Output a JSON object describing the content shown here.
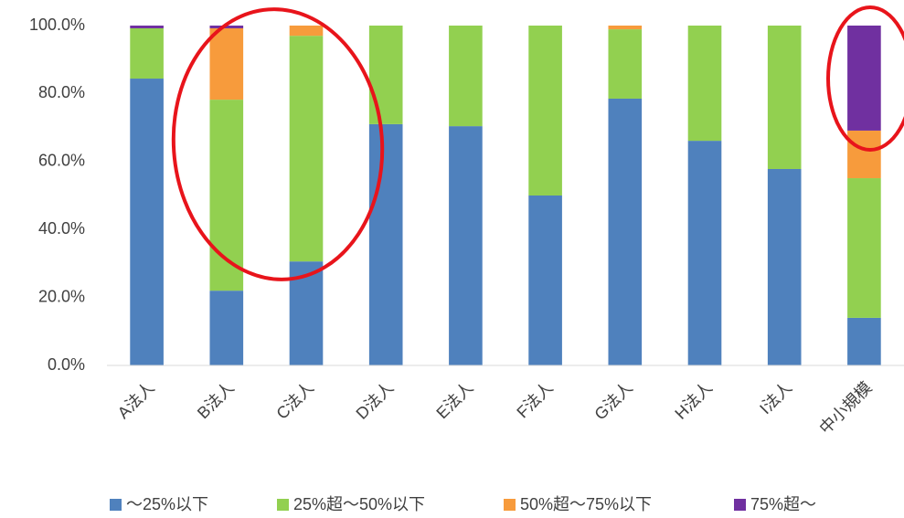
{
  "chart_data": {
    "type": "stacked_bar",
    "categories": [
      "A法人",
      "B法人",
      "C法人",
      "D法人",
      "E法人",
      "F法人",
      "G法人",
      "H法人",
      "I法人",
      "中小規模"
    ],
    "series": [
      {
        "name": "〜25%以下",
        "color": "#4f81bd",
        "values": [
          84.4,
          22.0,
          30.6,
          71.0,
          70.4,
          50.0,
          78.5,
          66.1,
          57.8,
          14.0
        ]
      },
      {
        "name": "25%超〜50%以下",
        "color": "#92d050",
        "values": [
          14.8,
          56.2,
          66.4,
          29.0,
          29.6,
          50.0,
          20.4,
          33.9,
          42.2,
          41.1
        ]
      },
      {
        "name": "50%超〜75%以下",
        "color": "#f79b3c",
        "values": [
          0,
          21.0,
          3.0,
          0,
          0,
          0,
          1.1,
          0,
          0,
          14.0
        ]
      },
      {
        "name": "75%超〜",
        "color": "#7030a0",
        "values": [
          0.8,
          0.8,
          0,
          0,
          0,
          0,
          0,
          0,
          0,
          30.9
        ]
      }
    ],
    "ylim": [
      0,
      100
    ],
    "yticks": [
      {
        "value": 0,
        "label": "0.0%"
      },
      {
        "value": 20,
        "label": "20.0%"
      },
      {
        "value": 40,
        "label": "40.0%"
      },
      {
        "value": 60,
        "label": "60.0%"
      },
      {
        "value": 80,
        "label": "80.0%"
      },
      {
        "value": 100,
        "label": "100.0%"
      }
    ],
    "grid": false,
    "legend": "bottom"
  }
}
